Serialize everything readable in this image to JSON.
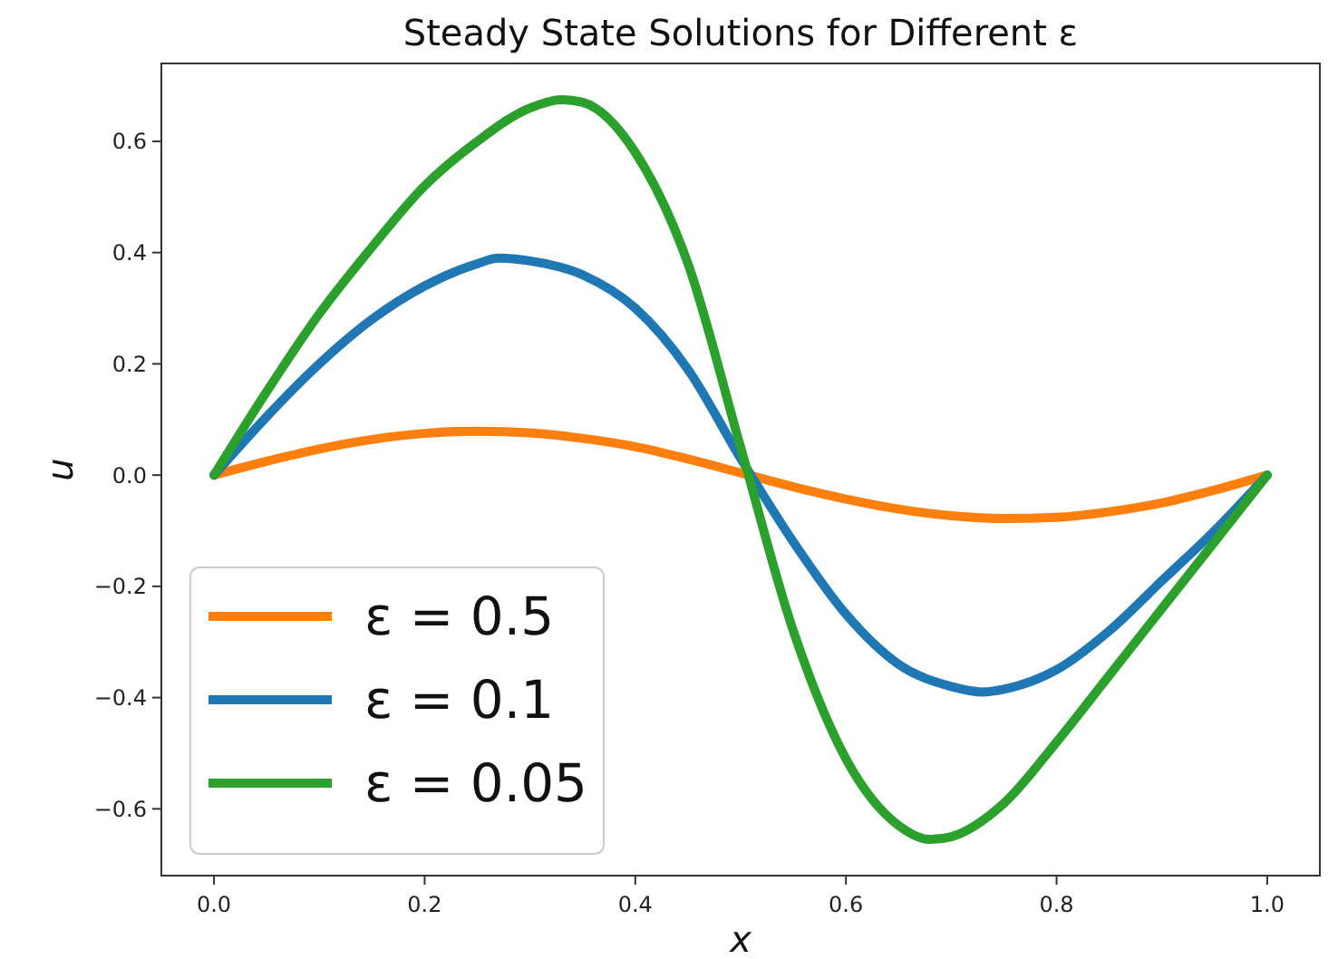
{
  "chart_data": {
    "type": "line",
    "title": "Steady State Solutions for Different ε",
    "xlabel": "x",
    "ylabel": "u",
    "xlim": [
      -0.05,
      1.05
    ],
    "ylim": [
      -0.72,
      0.74
    ],
    "xticks": [
      {
        "value": 0,
        "label": "0.0"
      },
      {
        "value": 0.2,
        "label": "0.2"
      },
      {
        "value": 0.4,
        "label": "0.4"
      },
      {
        "value": 0.6,
        "label": "0.6"
      },
      {
        "value": 0.8,
        "label": "0.8"
      },
      {
        "value": 1,
        "label": "1.0"
      }
    ],
    "yticks": [
      {
        "value": -0.6,
        "label": "−0.6"
      },
      {
        "value": -0.4,
        "label": "−0.4"
      },
      {
        "value": -0.2,
        "label": "−0.2"
      },
      {
        "value": 0,
        "label": "0.0"
      },
      {
        "value": 0.2,
        "label": "0.2"
      },
      {
        "value": 0.4,
        "label": "0.4"
      },
      {
        "value": 0.6,
        "label": "0.6"
      }
    ],
    "grid": false,
    "legend": "bottom left",
    "marker": "none",
    "line_style": "solid",
    "series": [
      {
        "name": "ε = 0.5",
        "color": "#ff7f0e",
        "x": [
          0,
          0.05,
          0.1,
          0.15,
          0.2,
          0.25,
          0.3,
          0.35,
          0.4,
          0.45,
          0.5,
          0.55,
          0.6,
          0.65,
          0.7,
          0.75,
          0.8,
          0.85,
          0.9,
          0.95,
          1
        ],
        "values": [
          0,
          0.025,
          0.047,
          0.064,
          0.075,
          0.079,
          0.076,
          0.066,
          0.051,
          0.029,
          0.004,
          -0.021,
          -0.043,
          -0.061,
          -0.073,
          -0.078,
          -0.076,
          -0.066,
          -0.05,
          -0.027,
          0
        ]
      },
      {
        "name": "ε = 0.1",
        "color": "#1f77b4",
        "x": [
          0,
          0.05,
          0.1,
          0.15,
          0.2,
          0.25,
          0.27,
          0.3,
          0.35,
          0.4,
          0.45,
          0.5,
          0.55,
          0.6,
          0.65,
          0.7,
          0.73,
          0.75,
          0.8,
          0.85,
          0.9,
          0.95,
          1
        ],
        "values": [
          0,
          0.105,
          0.2,
          0.28,
          0.34,
          0.38,
          0.39,
          0.385,
          0.36,
          0.3,
          0.19,
          0.03,
          -0.12,
          -0.25,
          -0.34,
          -0.38,
          -0.39,
          -0.385,
          -0.35,
          -0.28,
          -0.19,
          -0.1,
          0
        ]
      },
      {
        "name": "ε = 0.05",
        "color": "#2ca02c",
        "x": [
          0,
          0.05,
          0.1,
          0.15,
          0.2,
          0.25,
          0.3,
          0.33,
          0.35,
          0.4,
          0.45,
          0.5,
          0.55,
          0.6,
          0.65,
          0.68,
          0.7,
          0.75,
          0.8,
          0.85,
          0.9,
          0.95,
          1
        ],
        "values": [
          0,
          0.15,
          0.29,
          0.41,
          0.52,
          0.6,
          0.66,
          0.675,
          0.67,
          0.58,
          0.38,
          0.05,
          -0.28,
          -0.51,
          -0.63,
          -0.655,
          -0.65,
          -0.59,
          -0.48,
          -0.36,
          -0.24,
          -0.12,
          0
        ]
      }
    ]
  }
}
